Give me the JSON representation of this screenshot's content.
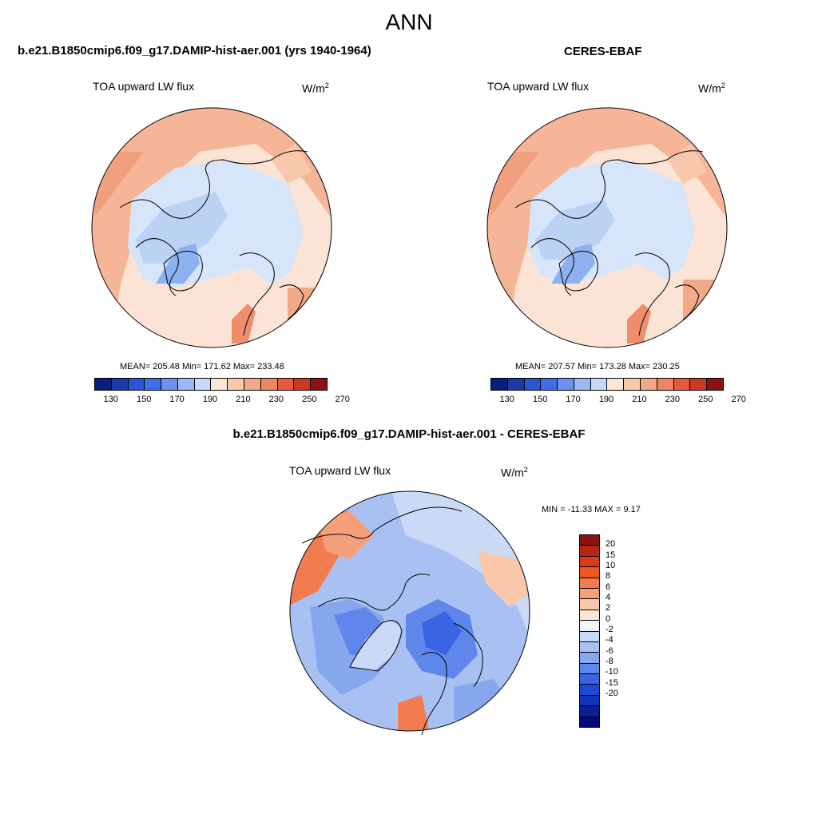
{
  "title": "ANN",
  "panels": {
    "left": {
      "case_title": "b.e21.B1850cmip6.f09_g17.DAMIP-hist-aer.001 (yrs 1940-1964)",
      "variable": "TOA upward LW flux",
      "units": "W/m",
      "units_sup": "2",
      "stats": "MEAN= 205.48  Min= 171.62  Max= 233.48"
    },
    "right": {
      "case_title": "CERES-EBAF",
      "variable": "TOA upward LW flux",
      "units": "W/m",
      "units_sup": "2",
      "stats": "MEAN= 207.57  Min= 173.28  Max= 230.25"
    },
    "diff": {
      "case_title": "b.e21.B1850cmip6.f09_g17.DAMIP-hist-aer.001 - CERES-EBAF",
      "variable": "TOA upward LW flux",
      "units": "W/m",
      "units_sup": "2",
      "stats": "MIN = -11.33 MAX =   9.17"
    }
  },
  "colorbar_abs": {
    "colors": [
      "#0a1e7a",
      "#1a3aa8",
      "#2a55d4",
      "#3f6fe6",
      "#6b92ef",
      "#9cb8f4",
      "#c8d9f8",
      "#fbe7d8",
      "#f8c9ab",
      "#f3a888",
      "#ee8563",
      "#e45c3d",
      "#c93a20",
      "#8c1212"
    ],
    "ticks": [
      "130",
      "150",
      "170",
      "190",
      "210",
      "230",
      "250",
      "270"
    ]
  },
  "colorbar_diff": {
    "colors": [
      "#8c1212",
      "#b82510",
      "#e03a14",
      "#f0561f",
      "#f27b50",
      "#f5a07b",
      "#f9c8aa",
      "#fbe5d6",
      "#f2f5fc",
      "#cad9f6",
      "#a9c1f2",
      "#86a6ee",
      "#5f86ea",
      "#3965e4",
      "#1f48d6",
      "#1333b8",
      "#0a2196",
      "#000a78"
    ],
    "ticks": [
      "20",
      "15",
      "10",
      "8",
      "6",
      "4",
      "2",
      "0",
      "-2",
      "-4",
      "-6",
      "-8",
      "-10",
      "-15",
      "-20"
    ]
  }
}
